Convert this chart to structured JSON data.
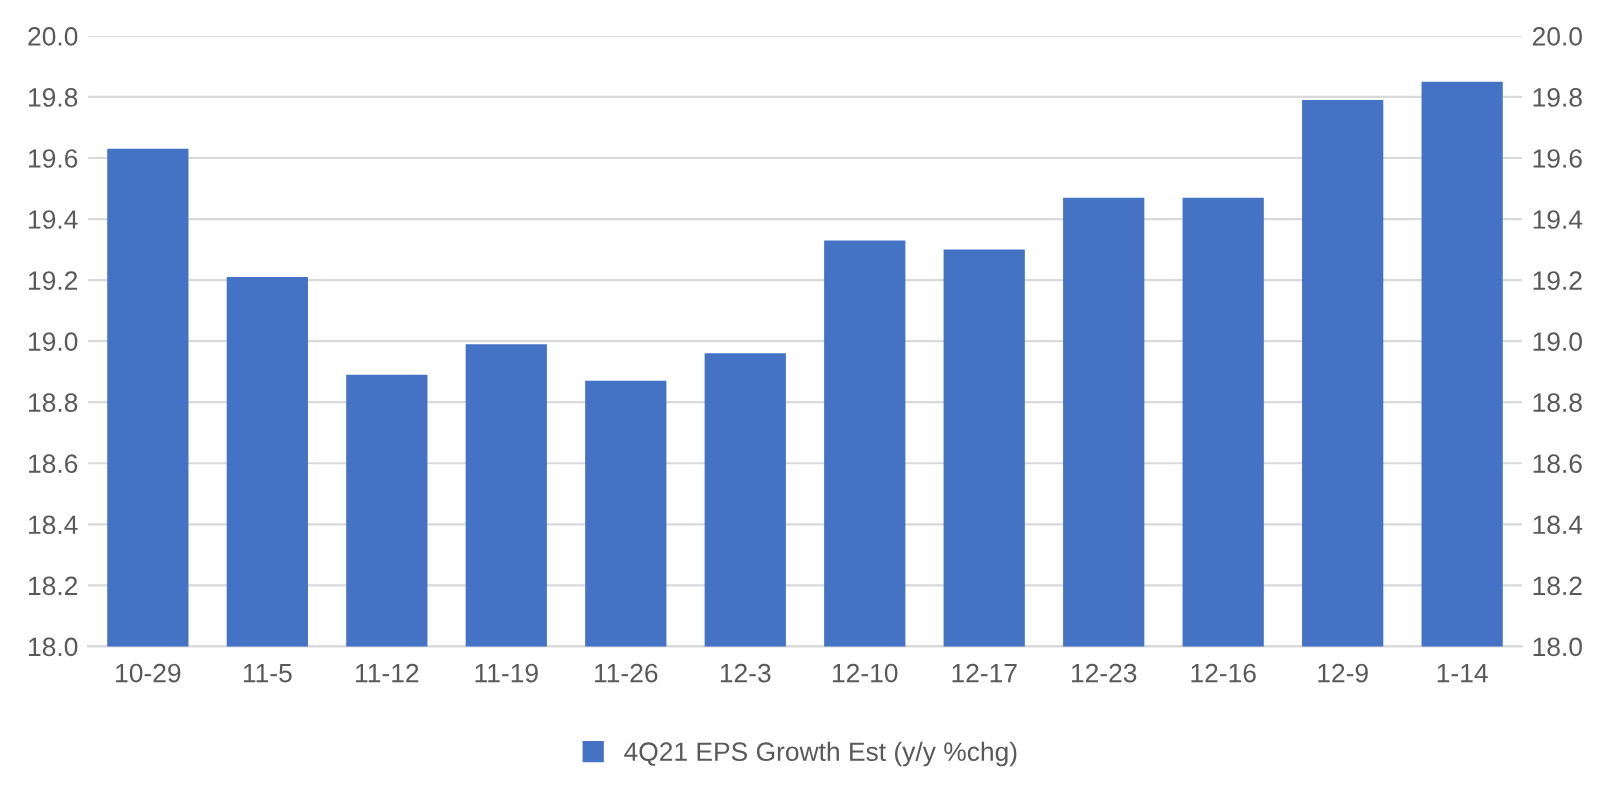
{
  "chart_data": {
    "type": "bar",
    "categories": [
      "10-29",
      "11-5",
      "11-12",
      "11-19",
      "11-26",
      "12-3",
      "12-10",
      "12-17",
      "12-23",
      "12-16",
      "12-9",
      "1-14"
    ],
    "series": [
      {
        "name": "4Q21 EPS Growth Est (y/y %chg)",
        "color": "#4472c4",
        "values": [
          19.63,
          19.21,
          18.89,
          18.99,
          18.87,
          18.96,
          19.33,
          19.3,
          19.47,
          19.47,
          19.79,
          19.85
        ]
      }
    ],
    "ylim": [
      18.0,
      20.0
    ],
    "yticks": [
      {
        "value": 18.0,
        "label": "18.0"
      },
      {
        "value": 18.2,
        "label": "18.2"
      },
      {
        "value": 18.4,
        "label": "18.4"
      },
      {
        "value": 18.6,
        "label": "18.6"
      },
      {
        "value": 18.8,
        "label": "18.8"
      },
      {
        "value": 19.0,
        "label": "19.0"
      },
      {
        "value": 19.2,
        "label": "19.2"
      },
      {
        "value": 19.4,
        "label": "19.4"
      },
      {
        "value": 19.6,
        "label": "19.6"
      },
      {
        "value": 19.8,
        "label": "19.8"
      },
      {
        "value": 20.0,
        "label": "20.0"
      }
    ],
    "y2lim": [
      18.0,
      20.0
    ],
    "y2ticks": [
      {
        "value": 18.0,
        "label": "18.0"
      },
      {
        "value": 18.2,
        "label": "18.2"
      },
      {
        "value": 18.4,
        "label": "18.4"
      },
      {
        "value": 18.6,
        "label": "18.6"
      },
      {
        "value": 18.8,
        "label": "18.8"
      },
      {
        "value": 19.0,
        "label": "19.0"
      },
      {
        "value": 19.2,
        "label": "19.2"
      },
      {
        "value": 19.4,
        "label": "19.4"
      },
      {
        "value": 19.6,
        "label": "19.6"
      },
      {
        "value": 19.8,
        "label": "19.8"
      },
      {
        "value": 20.0,
        "label": "20.0"
      }
    ],
    "grid": "y",
    "legend": "bottom"
  }
}
